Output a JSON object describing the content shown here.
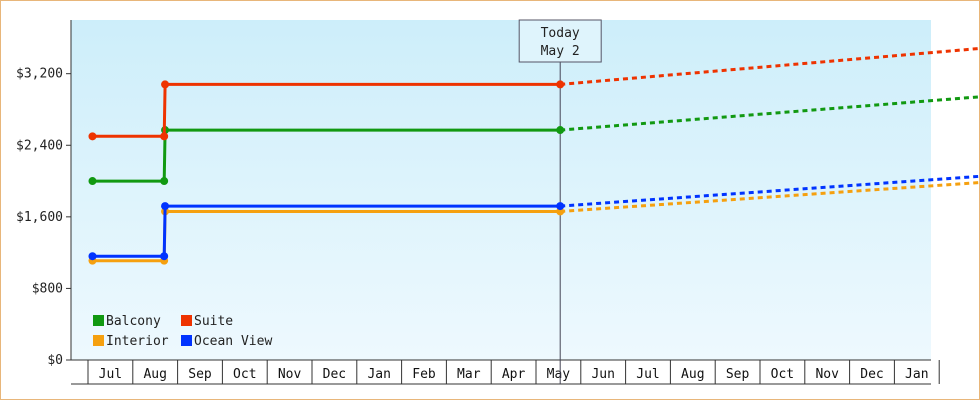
{
  "chart_data": {
    "type": "line",
    "title": "",
    "xlabel": "",
    "ylabel": "",
    "x_ticks": [
      "Jul",
      "Aug",
      "Sep",
      "Oct",
      "Nov",
      "Dec",
      "Jan",
      "Feb",
      "Mar",
      "Apr",
      "May",
      "Jun",
      "Jul",
      "Aug",
      "Sep",
      "Oct",
      "Nov",
      "Dec",
      "Jan"
    ],
    "ylim": [
      0,
      3800
    ],
    "y_ticks": [
      0,
      800,
      1600,
      2400,
      3200
    ],
    "y_tick_labels": [
      "$0",
      "$800",
      "$1,600",
      "$2,400",
      "$3,200"
    ],
    "grid": false,
    "legend_position": "bottom-left",
    "today_marker": {
      "line1": "Today",
      "line2": "May 2",
      "x": 10.04
    },
    "series": [
      {
        "name": "Balcony",
        "color": "#119911",
        "points": [
          [
            -0.4,
            2000
          ],
          [
            1.2,
            2000
          ],
          [
            1.22,
            2570
          ],
          [
            10.04,
            2570
          ]
        ],
        "projection": [
          [
            10.04,
            2570
          ],
          [
            19.6,
            2950
          ]
        ]
      },
      {
        "name": "Suite",
        "color": "#ee3300",
        "points": [
          [
            -0.4,
            2500
          ],
          [
            1.2,
            2500
          ],
          [
            1.22,
            3080
          ],
          [
            10.04,
            3080
          ]
        ],
        "projection": [
          [
            10.04,
            3080
          ],
          [
            19.6,
            3490
          ]
        ]
      },
      {
        "name": "Interior",
        "color": "#f5a00f",
        "points": [
          [
            -0.4,
            1110
          ],
          [
            1.2,
            1110
          ],
          [
            1.22,
            1660
          ],
          [
            10.04,
            1660
          ]
        ],
        "projection": [
          [
            10.04,
            1660
          ],
          [
            19.6,
            1990
          ]
        ]
      },
      {
        "name": "Ocean View",
        "color": "#0033ff",
        "points": [
          [
            -0.4,
            1160
          ],
          [
            1.2,
            1160
          ],
          [
            1.22,
            1720
          ],
          [
            10.04,
            1720
          ]
        ],
        "projection": [
          [
            10.04,
            1720
          ],
          [
            19.6,
            2060
          ]
        ]
      }
    ],
    "legend_order": [
      "Balcony",
      "Suite",
      "Interior",
      "Ocean View"
    ]
  }
}
